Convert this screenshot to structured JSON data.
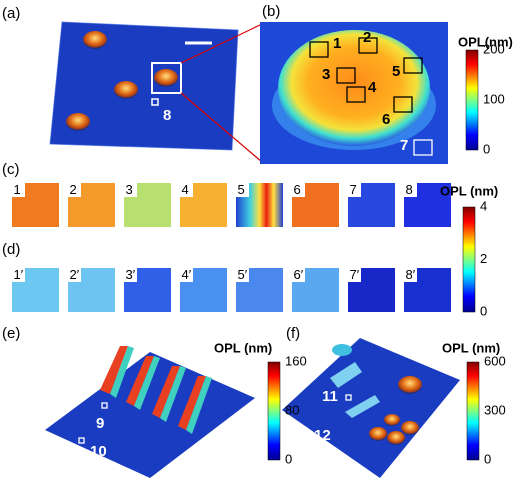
{
  "panels": [
    {
      "label": "(a)",
      "regions": [
        "8"
      ]
    },
    {
      "label": "(b)",
      "regions": [
        "1",
        "2",
        "3",
        "4",
        "5",
        "6",
        "7"
      ],
      "colorbar": {
        "title": "OPL(nm)",
        "ticks": [
          200,
          100,
          0
        ]
      }
    },
    {
      "label": "(c)",
      "tiles": [
        "1",
        "2",
        "3",
        "4",
        "5",
        "6",
        "7",
        "8"
      ],
      "colorbar": {
        "title": "OPL (nm)",
        "ticks": [
          4,
          2,
          0
        ]
      }
    },
    {
      "label": "(d)",
      "tiles": [
        "1′",
        "2′",
        "3′",
        "4′",
        "5′",
        "6′",
        "7′",
        "8′"
      ]
    },
    {
      "label": "(e)",
      "regions": [
        "9",
        "10"
      ],
      "colorbar": {
        "title": "OPL (nm)",
        "ticks": [
          160,
          80,
          0
        ]
      }
    },
    {
      "label": "(f)",
      "regions": [
        "11",
        "12"
      ],
      "colorbar": {
        "title": "OPL (nm)",
        "ticks": [
          600,
          300,
          0
        ]
      }
    }
  ]
}
